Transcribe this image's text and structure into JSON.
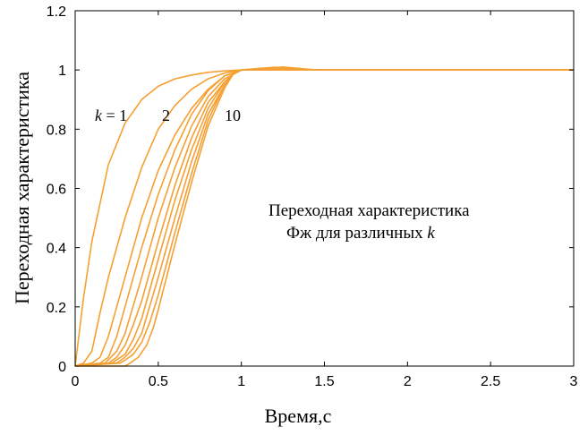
{
  "chart_data": {
    "type": "line",
    "xlabel": "Время,с",
    "ylabel": "Переходная характеристика",
    "xlim": [
      0,
      3
    ],
    "ylim": [
      0,
      1.2
    ],
    "xticks": [
      "0",
      "0.5",
      "1",
      "1.5",
      "2",
      "2.5",
      "3"
    ],
    "yticks": [
      "0",
      "0.2",
      "0.4",
      "0.6",
      "0.8",
      "1",
      "1.2"
    ],
    "grid": false,
    "series_color": "#f5a032",
    "annotation_line1": "Переходная  характеристика",
    "annotation_line2": "Фж для различных ",
    "annotation_k": "k",
    "curve_label_k": "k",
    "curve_label_eq": " = 1",
    "curve_label_2": "2",
    "curve_label_10": "10",
    "series": [
      {
        "x": [
          0,
          0.05,
          0.1,
          0.2,
          0.3,
          0.4,
          0.5,
          0.6,
          0.7,
          0.8,
          0.9,
          1.0,
          1.5,
          3.0
        ],
        "values": [
          0,
          0.23,
          0.42,
          0.68,
          0.82,
          0.9,
          0.945,
          0.97,
          0.983,
          0.992,
          0.997,
          1.0,
          1.0,
          1.0
        ]
      },
      {
        "x": [
          0,
          0.05,
          0.1,
          0.15,
          0.2,
          0.3,
          0.4,
          0.5,
          0.6,
          0.7,
          0.8,
          0.9,
          1.0,
          1.5,
          3.0
        ],
        "values": [
          0,
          0.01,
          0.05,
          0.18,
          0.3,
          0.5,
          0.67,
          0.8,
          0.88,
          0.935,
          0.97,
          0.99,
          1.0,
          1.0,
          1.0
        ]
      },
      {
        "x": [
          0,
          0.1,
          0.15,
          0.2,
          0.3,
          0.4,
          0.5,
          0.6,
          0.7,
          0.8,
          0.9,
          1.0,
          1.1,
          1.3,
          1.5,
          3.0
        ],
        "values": [
          0,
          0.01,
          0.03,
          0.1,
          0.3,
          0.5,
          0.66,
          0.78,
          0.87,
          0.935,
          0.98,
          1.0,
          1.005,
          1.003,
          1.0,
          1.0
        ]
      },
      {
        "x": [
          0,
          0.15,
          0.2,
          0.25,
          0.3,
          0.4,
          0.5,
          0.6,
          0.7,
          0.8,
          0.9,
          1.0,
          1.2,
          1.4,
          3.0
        ],
        "values": [
          0,
          0.01,
          0.03,
          0.1,
          0.2,
          0.4,
          0.58,
          0.73,
          0.85,
          0.93,
          0.98,
          1.0,
          1.007,
          1.0,
          1.0
        ]
      },
      {
        "x": [
          0,
          0.18,
          0.25,
          0.3,
          0.4,
          0.5,
          0.6,
          0.7,
          0.8,
          0.9,
          1.0,
          1.2,
          1.4,
          3.0
        ],
        "values": [
          0,
          0.01,
          0.05,
          0.11,
          0.3,
          0.5,
          0.67,
          0.81,
          0.91,
          0.97,
          1.0,
          1.008,
          1.0,
          1.0
        ]
      },
      {
        "x": [
          0,
          0.2,
          0.25,
          0.3,
          0.35,
          0.4,
          0.5,
          0.6,
          0.7,
          0.8,
          0.9,
          0.95,
          1.0,
          1.2,
          1.4,
          3.0
        ],
        "values": [
          0,
          0.01,
          0.03,
          0.07,
          0.14,
          0.22,
          0.42,
          0.61,
          0.77,
          0.89,
          0.96,
          0.985,
          1.0,
          1.008,
          1.0,
          1.0
        ]
      },
      {
        "x": [
          0,
          0.22,
          0.3,
          0.35,
          0.4,
          0.5,
          0.6,
          0.7,
          0.8,
          0.9,
          0.95,
          1.0,
          1.2,
          1.4,
          3.0
        ],
        "values": [
          0,
          0.01,
          0.04,
          0.09,
          0.16,
          0.36,
          0.56,
          0.73,
          0.87,
          0.96,
          0.985,
          1.0,
          1.009,
          1.0,
          1.0
        ]
      },
      {
        "x": [
          0,
          0.25,
          0.3,
          0.35,
          0.4,
          0.5,
          0.6,
          0.7,
          0.8,
          0.9,
          0.95,
          1.0,
          1.2,
          1.4,
          3.0
        ],
        "values": [
          0,
          0.01,
          0.03,
          0.06,
          0.11,
          0.3,
          0.5,
          0.69,
          0.85,
          0.95,
          0.985,
          1.0,
          1.009,
          1.0,
          1.0
        ]
      },
      {
        "x": [
          0,
          0.27,
          0.3,
          0.35,
          0.4,
          0.45,
          0.5,
          0.6,
          0.7,
          0.8,
          0.9,
          0.95,
          1.0,
          1.25,
          1.45,
          3.0
        ],
        "values": [
          0,
          0.01,
          0.02,
          0.04,
          0.08,
          0.15,
          0.24,
          0.45,
          0.65,
          0.83,
          0.95,
          0.985,
          1.0,
          1.01,
          1.0,
          1.0
        ]
      },
      {
        "x": [
          0,
          0.3,
          0.33,
          0.38,
          0.43,
          0.47,
          0.5,
          0.6,
          0.7,
          0.8,
          0.9,
          0.95,
          1.0,
          1.25,
          1.45,
          3.0
        ],
        "values": [
          0,
          0.0,
          0.01,
          0.03,
          0.07,
          0.13,
          0.19,
          0.41,
          0.62,
          0.81,
          0.94,
          0.985,
          1.0,
          1.01,
          1.0,
          1.0
        ]
      }
    ]
  }
}
